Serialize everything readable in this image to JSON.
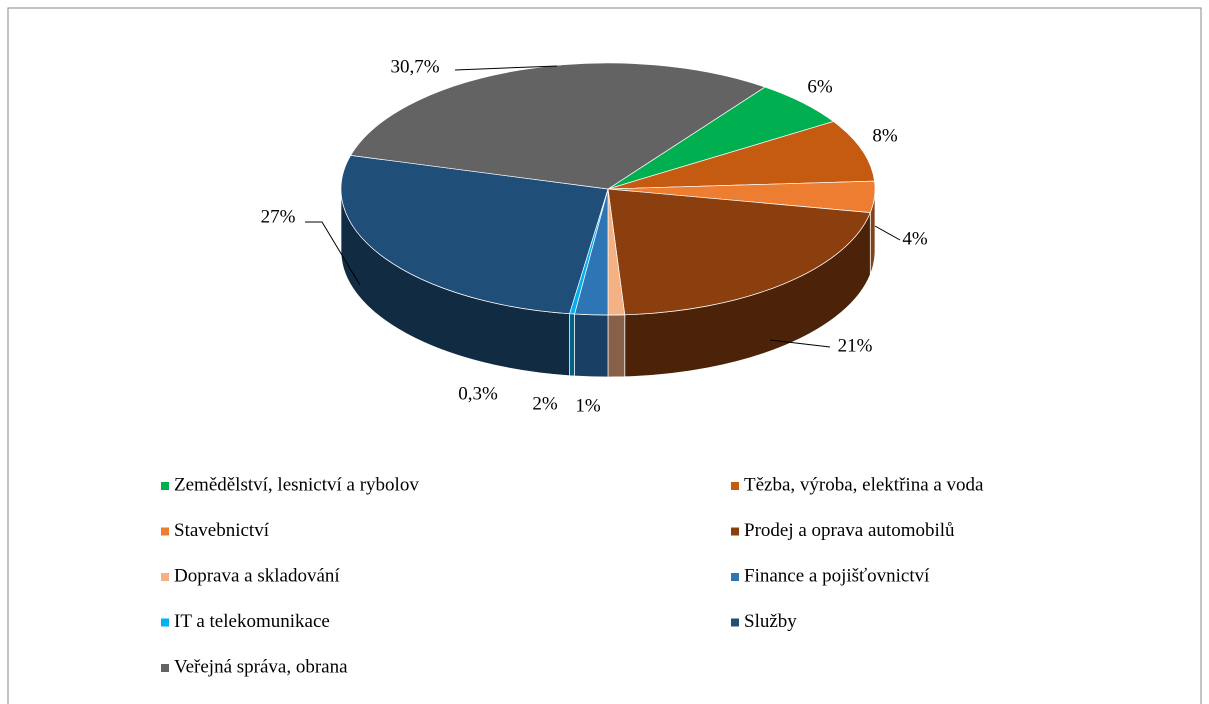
{
  "chart_data": {
    "type": "pie",
    "categories": [
      "Zemědělství, lesnictví a rybolov",
      "Tězba, výroba, elektřina a voda",
      "Stavebnictví",
      "Prodej a oprava automobilů",
      "Doprava a skladování",
      "Finance a pojišťovnictví",
      "IT a telekomunikace",
      "Služby",
      "Veřejná správa, obrana"
    ],
    "values": [
      6,
      8,
      4,
      21,
      1,
      2,
      0.3,
      27,
      30.7
    ],
    "value_labels": [
      "6%",
      "8%",
      "4%",
      "21%",
      "1%",
      "2%",
      "0,3%",
      "27%",
      "30,7%"
    ],
    "colors": [
      "#00b050",
      "#c55a11",
      "#ed7d31",
      "#8b3f0e",
      "#f4b183",
      "#2e75b6",
      "#00b0f0",
      "#1f4e79",
      "#636363"
    ],
    "legend": "bottom"
  }
}
